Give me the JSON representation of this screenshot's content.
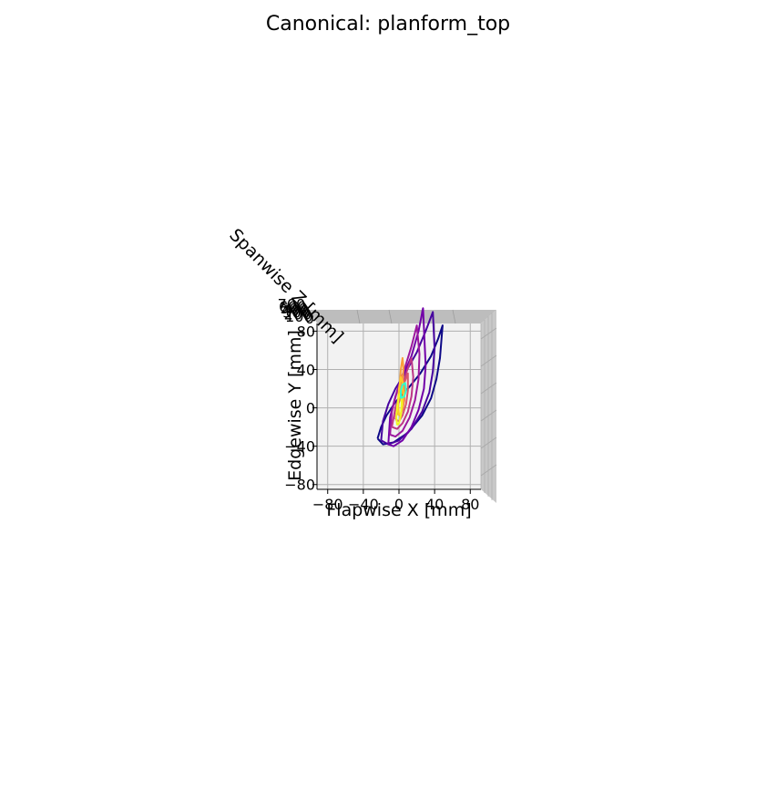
{
  "chart_data": {
    "type": "line",
    "title": "Canonical: planform_top",
    "xlabel": "Flapwise X [mm]",
    "ylabel": "Edgewise Y [mm]",
    "zlabel": "Spanwise Z [mm]",
    "x_ticks": [
      "−80",
      "−40",
      "0",
      "40",
      "80"
    ],
    "y_ticks": [
      "−80",
      "−40",
      "0",
      "40",
      "80"
    ],
    "z_ticks": [
      "0",
      "100",
      "200",
      "300",
      "400",
      "500",
      "600",
      "700"
    ],
    "xlim": [
      -92,
      92
    ],
    "ylim": [
      -85,
      88
    ],
    "grid": true,
    "colormap": [
      "#0d0887",
      "#46039f",
      "#7201a8",
      "#9c179e",
      "#bd3786",
      "#d8576b",
      "#ed7953",
      "#fb9f3a",
      "#fdca26",
      "#f0f921",
      "#33ffcc"
    ],
    "series": [
      {
        "x": [
          -24,
          -18,
          -6,
          10,
          26,
          36,
          42,
          46,
          49,
          44,
          36,
          24,
          10,
          -4,
          -14,
          -20,
          -24
        ],
        "y": [
          -32,
          -38,
          -36,
          -26,
          -8,
          10,
          30,
          52,
          86,
          72,
          54,
          36,
          20,
          6,
          -8,
          -20,
          -32
        ]
      },
      {
        "x": [
          -20,
          -12,
          0,
          14,
          26,
          34,
          38,
          40,
          38,
          30,
          20,
          8,
          -4,
          -12,
          -18,
          -20
        ],
        "y": [
          -34,
          -38,
          -34,
          -22,
          -4,
          16,
          38,
          62,
          100,
          80,
          58,
          38,
          20,
          4,
          -14,
          -34
        ]
      },
      {
        "x": [
          -12,
          -6,
          4,
          14,
          22,
          28,
          30,
          27,
          22,
          14,
          4,
          -4,
          -10,
          -12
        ],
        "y": [
          -38,
          -40,
          -34,
          -20,
          -2,
          20,
          44,
          104,
          80,
          54,
          32,
          12,
          -10,
          -38
        ]
      },
      {
        "x": [
          -10,
          -4,
          4,
          12,
          18,
          22,
          23,
          20,
          14,
          6,
          -2,
          -8,
          -10
        ],
        "y": [
          -28,
          -30,
          -24,
          -10,
          8,
          30,
          56,
          86,
          64,
          40,
          18,
          -4,
          -28
        ]
      },
      {
        "x": [
          -8,
          -2,
          4,
          10,
          14,
          16,
          14,
          8,
          2,
          -4,
          -8
        ],
        "y": [
          -20,
          -22,
          -16,
          -4,
          12,
          32,
          52,
          36,
          18,
          0,
          -20
        ]
      },
      {
        "x": [
          -4,
          0,
          4,
          8,
          10,
          10,
          6,
          2,
          -2,
          -4
        ],
        "y": [
          -12,
          -14,
          -8,
          4,
          18,
          36,
          26,
          12,
          0,
          -12
        ]
      },
      {
        "x": [
          -2,
          1,
          4,
          6,
          6,
          3,
          0,
          -2
        ],
        "y": [
          -6,
          -8,
          -2,
          8,
          22,
          34,
          10,
          -6
        ]
      },
      {
        "x": [
          2,
          4,
          5,
          4,
          2,
          1,
          2
        ],
        "y": [
          12,
          22,
          42,
          52,
          40,
          26,
          12
        ]
      },
      {
        "x": [
          0,
          2,
          4,
          5,
          4,
          2,
          0,
          -1,
          0
        ],
        "y": [
          -8,
          -6,
          2,
          14,
          26,
          32,
          20,
          6,
          -8
        ]
      },
      {
        "x": [
          -2,
          0,
          2,
          3,
          2,
          0,
          -2,
          -3,
          -2
        ],
        "y": [
          -18,
          -16,
          -8,
          4,
          16,
          12,
          2,
          -10,
          -18
        ]
      },
      {
        "x": [
          2,
          6,
          8,
          7,
          4,
          2,
          2
        ],
        "y": [
          10,
          12,
          18,
          26,
          24,
          18,
          10
        ]
      }
    ]
  }
}
